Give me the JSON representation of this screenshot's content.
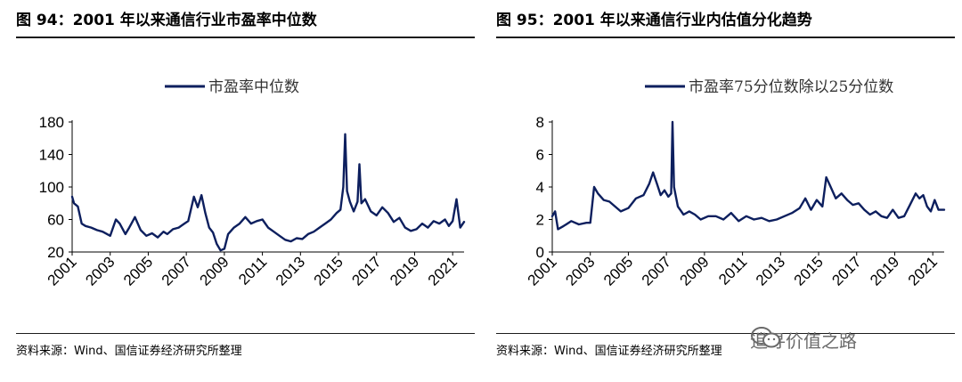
{
  "left": {
    "title": "图 94：2001 年以来通信行业市盈率中位数",
    "source": "资料来源：Wind、国信证券经济研究所整理"
  },
  "right": {
    "title": "图 95：2001 年以来通信行业内估值分化趋势",
    "source": "资料来源：Wind、国信证券经济研究所整理"
  },
  "watermark": {
    "text": "追寻价值之路",
    "icon": "wechat-icon"
  },
  "colors": {
    "line": "#0d1f5e",
    "axis": "#000000",
    "rule": "#1c1c1c"
  },
  "chart_data": [
    {
      "type": "line",
      "title": "",
      "xlabel": "",
      "ylabel": "",
      "ylim": [
        20,
        180
      ],
      "yticks": [
        20,
        60,
        100,
        140,
        180
      ],
      "xlim": [
        2001,
        2021.6
      ],
      "xticks": [
        "2001",
        "2003",
        "2005",
        "2007",
        "2009",
        "2011",
        "2013",
        "2015",
        "2017",
        "2019",
        "2021"
      ],
      "legend": "top-center",
      "grid": false,
      "series": [
        {
          "name": "市盈率中位数",
          "x": [
            2001.0,
            2001.1,
            2001.3,
            2001.5,
            2001.7,
            2002.0,
            2002.3,
            2002.6,
            2003.0,
            2003.3,
            2003.5,
            2003.8,
            2004.0,
            2004.3,
            2004.6,
            2004.9,
            2005.2,
            2005.5,
            2005.8,
            2006.0,
            2006.3,
            2006.6,
            2006.9,
            2007.1,
            2007.4,
            2007.6,
            2007.8,
            2008.0,
            2008.2,
            2008.4,
            2008.6,
            2008.8,
            2009.0,
            2009.2,
            2009.5,
            2009.8,
            2010.1,
            2010.4,
            2010.7,
            2011.0,
            2011.3,
            2011.6,
            2011.9,
            2012.2,
            2012.5,
            2012.8,
            2013.1,
            2013.4,
            2013.7,
            2014.0,
            2014.3,
            2014.6,
            2014.9,
            2015.1,
            2015.25,
            2015.35,
            2015.45,
            2015.6,
            2015.8,
            2016.0,
            2016.1,
            2016.2,
            2016.4,
            2016.7,
            2017.0,
            2017.3,
            2017.6,
            2017.9,
            2018.2,
            2018.5,
            2018.8,
            2019.1,
            2019.4,
            2019.7,
            2020.0,
            2020.3,
            2020.6,
            2020.8,
            2021.0,
            2021.2,
            2021.4,
            2021.6
          ],
          "values": [
            88,
            80,
            76,
            55,
            52,
            50,
            47,
            45,
            40,
            60,
            55,
            42,
            50,
            63,
            47,
            40,
            43,
            38,
            45,
            42,
            48,
            50,
            55,
            58,
            88,
            75,
            90,
            68,
            50,
            44,
            30,
            22,
            24,
            42,
            50,
            55,
            63,
            55,
            58,
            60,
            50,
            45,
            40,
            35,
            33,
            37,
            36,
            42,
            45,
            50,
            55,
            60,
            68,
            72,
            100,
            165,
            95,
            82,
            70,
            82,
            128,
            80,
            85,
            70,
            65,
            75,
            68,
            57,
            62,
            50,
            46,
            48,
            55,
            50,
            58,
            55,
            60,
            52,
            58,
            85,
            50,
            57
          ]
        }
      ]
    },
    {
      "type": "line",
      "title": "",
      "xlabel": "",
      "ylabel": "",
      "ylim": [
        0,
        8
      ],
      "yticks": [
        0,
        2,
        4,
        6,
        8
      ],
      "xlim": [
        2001,
        2021.6
      ],
      "xticks": [
        "2001",
        "2003",
        "2005",
        "2007",
        "2009",
        "2011",
        "2013",
        "2015",
        "2017",
        "2019",
        "2021"
      ],
      "legend": "top-center",
      "grid": false,
      "series": [
        {
          "name": "市盈率75分位数除以25分位数",
          "x": [
            2001.0,
            2001.15,
            2001.3,
            2001.6,
            2002.0,
            2002.4,
            2002.8,
            2003.0,
            2003.2,
            2003.4,
            2003.7,
            2004.0,
            2004.3,
            2004.6,
            2005.0,
            2005.4,
            2005.8,
            2006.1,
            2006.3,
            2006.5,
            2006.7,
            2006.9,
            2007.1,
            2007.25,
            2007.32,
            2007.4,
            2007.6,
            2007.9,
            2008.2,
            2008.5,
            2008.8,
            2009.2,
            2009.6,
            2010.0,
            2010.4,
            2010.8,
            2011.2,
            2011.6,
            2012.0,
            2012.4,
            2012.8,
            2013.2,
            2013.6,
            2014.0,
            2014.3,
            2014.6,
            2014.9,
            2015.2,
            2015.4,
            2015.6,
            2015.9,
            2016.2,
            2016.5,
            2016.8,
            2017.1,
            2017.4,
            2017.7,
            2018.0,
            2018.3,
            2018.6,
            2018.9,
            2019.2,
            2019.5,
            2019.8,
            2020.1,
            2020.3,
            2020.5,
            2020.7,
            2020.9,
            2021.1,
            2021.3,
            2021.6
          ],
          "values": [
            2.2,
            2.5,
            1.4,
            1.6,
            1.9,
            1.7,
            1.8,
            1.8,
            4.0,
            3.6,
            3.2,
            3.1,
            2.8,
            2.5,
            2.7,
            3.3,
            3.5,
            4.2,
            4.9,
            4.2,
            3.5,
            3.8,
            3.4,
            3.6,
            8.0,
            4.0,
            2.8,
            2.3,
            2.5,
            2.3,
            2.0,
            2.2,
            2.2,
            2.0,
            2.4,
            1.9,
            2.2,
            2.0,
            2.1,
            1.9,
            2.0,
            2.2,
            2.4,
            2.7,
            3.3,
            2.6,
            3.2,
            2.8,
            4.6,
            4.1,
            3.3,
            3.6,
            3.2,
            2.9,
            3.0,
            2.6,
            2.3,
            2.5,
            2.2,
            2.1,
            2.6,
            2.1,
            2.2,
            2.9,
            3.6,
            3.3,
            3.5,
            2.8,
            2.5,
            3.2,
            2.6,
            2.6
          ]
        }
      ]
    }
  ]
}
